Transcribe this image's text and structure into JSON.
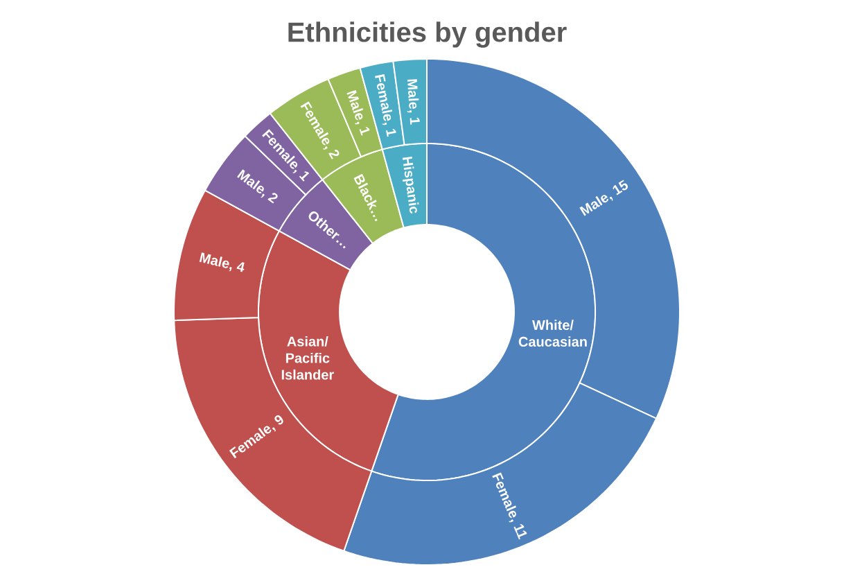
{
  "chart_data": [
    {
      "type": "donut",
      "title": "Ethnicities by gender",
      "categories": [
        "White/ Caucasian",
        "Asian/ Pacific Islander",
        "Other…",
        "Black…",
        "Hispanic"
      ],
      "values": [
        55.32,
        27.66,
        6.38,
        6.38,
        4.26
      ],
      "colors": [
        "#4f81bd",
        "#c0504d",
        "#8064a2",
        "#9bbb59",
        "#4bacc6"
      ]
    },
    {
      "type": "donut",
      "categories": [
        "Male, 15",
        "Female, 11",
        "Female, 9",
        "Male, 4",
        "Male, 2",
        "Female, 1",
        "Female, 2",
        "Male, 1",
        "Female, 1",
        "Male, 1"
      ],
      "values": [
        15,
        11,
        9,
        4,
        2,
        1,
        2,
        1,
        1,
        1
      ],
      "colors": [
        "#4f81bd",
        "#4f81bd",
        "#c0504d",
        "#c0504d",
        "#8064a2",
        "#8064a2",
        "#9bbb59",
        "#9bbb59",
        "#4bacc6",
        "#4bacc6"
      ]
    }
  ]
}
